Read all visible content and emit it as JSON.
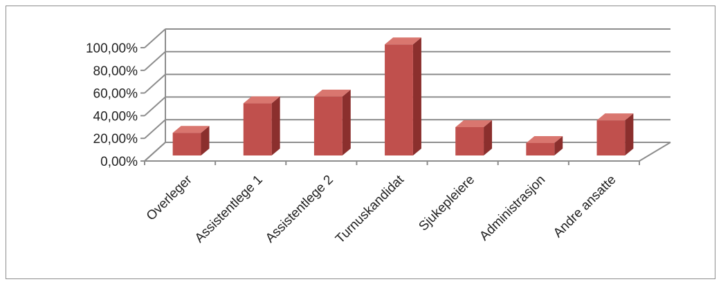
{
  "chart_data": {
    "type": "bar",
    "style": "3d-column",
    "categories": [
      "Overleger",
      "Assistentlege 1",
      "Assistentlege 2",
      "Turnuskandidat",
      "Sjukepleiere",
      "Administrasjon",
      "Andre ansatte"
    ],
    "series": [
      {
        "values": [
          0.2,
          0.46,
          0.52,
          0.98,
          0.25,
          0.11,
          0.31
        ]
      }
    ],
    "yticks": [
      "0,00%",
      "20,00%",
      "40,00%",
      "60,00%",
      "80,00%",
      "100,00%"
    ],
    "ylim": [
      0,
      1
    ],
    "grid": true,
    "legend": "none",
    "colors": {
      "bar_front": "#c0504d",
      "bar_side": "#8b2f2d",
      "bar_top": "#d9766f",
      "gridline": "#8c8c8c"
    }
  }
}
